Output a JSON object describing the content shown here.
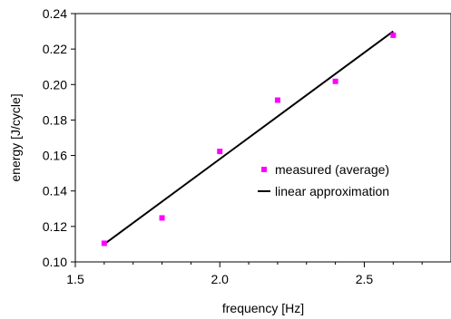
{
  "chart_data": {
    "type": "scatter",
    "xlabel": "frequency [Hz]",
    "ylabel": "energy [J/cycle]",
    "xlim": [
      1.5,
      2.8
    ],
    "ylim": [
      0.1,
      0.24
    ],
    "x_ticks": [
      1.5,
      2.0,
      2.5
    ],
    "x_tick_labels": [
      "1.5",
      "2.0",
      "2.5"
    ],
    "x_minor_ticks": [
      1.6,
      1.7,
      1.8,
      1.9,
      2.1,
      2.2,
      2.3,
      2.4,
      2.6,
      2.7
    ],
    "y_ticks": [
      0.1,
      0.12,
      0.14,
      0.16,
      0.18,
      0.2,
      0.22,
      0.24
    ],
    "y_tick_labels": [
      "0.10",
      "0.12",
      "0.14",
      "0.16",
      "0.18",
      "0.20",
      "0.22",
      "0.24"
    ],
    "grid": false,
    "legend_position": "center-right",
    "series": [
      {
        "name": "measured (average)",
        "kind": "scatter",
        "color": "#ff00ff",
        "x": [
          1.6,
          1.8,
          2.0,
          2.2,
          2.4,
          2.6
        ],
        "y": [
          0.1105,
          0.1248,
          0.1623,
          0.1912,
          0.2018,
          0.2278
        ]
      },
      {
        "name": "linear approximation",
        "kind": "line",
        "color": "#000000",
        "x": [
          1.6,
          2.6
        ],
        "y": [
          0.11,
          0.23
        ]
      }
    ]
  }
}
